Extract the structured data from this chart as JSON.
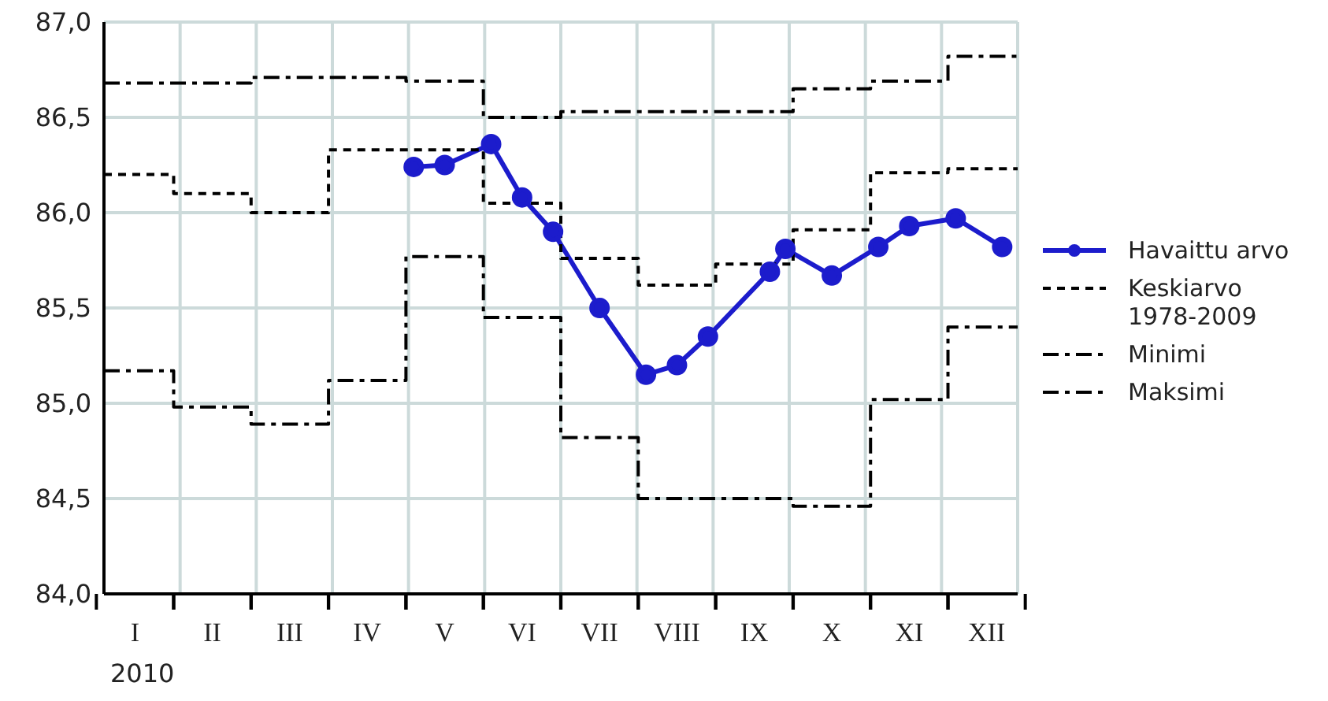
{
  "chart_data": {
    "type": "line",
    "xlabel": "2010",
    "categories": [
      null,
      null,
      "I",
      null,
      null,
      null,
      null,
      "II",
      null,
      null,
      null,
      null,
      "III",
      null,
      null,
      null,
      null,
      "IV",
      null,
      null,
      null,
      null,
      "V",
      null,
      null,
      null,
      null,
      "VI",
      null,
      null,
      null,
      null,
      "VII",
      null,
      null,
      null,
      null,
      "VIII",
      null,
      null,
      null,
      null,
      "IX",
      null,
      null,
      null,
      null,
      "X",
      null,
      null,
      null,
      null,
      "XI",
      null,
      null,
      null,
      null,
      "XII",
      null,
      null
    ],
    "ylim": [
      84,
      87
    ],
    "yticks": [
      {
        "value": 84,
        "label": "84,0"
      },
      {
        "value": 84.5,
        "label": "84,5"
      },
      {
        "value": 85,
        "label": "85,0"
      },
      {
        "value": 85.5,
        "label": "85,5"
      },
      {
        "value": 86,
        "label": "86,0"
      },
      {
        "value": 86.5,
        "label": "86,5"
      },
      {
        "value": 87,
        "label": "87,0"
      }
    ],
    "grid": true,
    "legend": "right",
    "series": [
      {
        "name": "Havaittu arvo",
        "color": "#1c1ccc",
        "marker": "circle",
        "line_style": "solid",
        "values": [
          null,
          null,
          null,
          null,
          null,
          null,
          null,
          null,
          null,
          null,
          null,
          null,
          null,
          null,
          null,
          null,
          null,
          null,
          null,
          null,
          86.24,
          null,
          86.25,
          null,
          null,
          86.36,
          null,
          86.08,
          null,
          85.9,
          null,
          null,
          85.5,
          null,
          null,
          85.15,
          null,
          85.2,
          null,
          85.35,
          null,
          null,
          null,
          85.69,
          85.81,
          null,
          null,
          85.67,
          null,
          null,
          85.82,
          null,
          85.93,
          null,
          null,
          85.97,
          null,
          null,
          85.82,
          null
        ]
      },
      {
        "name": "Keskiarvo 1978-2009",
        "type": "step",
        "color": "#000000",
        "marker": "none",
        "line_style": "dotted",
        "values": [
          86.2,
          86.2,
          86.2,
          86.2,
          86.2,
          86.1,
          86.1,
          86.1,
          86.1,
          86.1,
          86.0,
          86.0,
          86.0,
          86.0,
          86.0,
          86.33,
          86.33,
          86.33,
          86.33,
          86.33,
          86.33,
          86.33,
          86.33,
          86.33,
          86.33,
          86.05,
          86.05,
          86.05,
          86.05,
          86.05,
          85.76,
          85.76,
          85.76,
          85.76,
          85.76,
          85.62,
          85.62,
          85.62,
          85.62,
          85.62,
          85.73,
          85.73,
          85.73,
          85.73,
          85.73,
          85.91,
          85.91,
          85.91,
          85.91,
          85.91,
          86.21,
          86.21,
          86.21,
          86.21,
          86.21,
          86.23,
          86.23,
          86.23,
          86.23,
          86.23
        ]
      },
      {
        "name": "Minimi",
        "type": "step",
        "color": "#000000",
        "marker": "none",
        "line_style": "dashed",
        "values": [
          85.17,
          85.17,
          85.17,
          85.17,
          85.17,
          84.98,
          84.98,
          84.98,
          84.98,
          84.98,
          84.89,
          84.89,
          84.89,
          84.89,
          84.89,
          85.12,
          85.12,
          85.12,
          85.12,
          85.12,
          85.77,
          85.77,
          85.77,
          85.77,
          85.77,
          85.45,
          85.45,
          85.45,
          85.45,
          85.45,
          84.82,
          84.82,
          84.82,
          84.82,
          84.82,
          84.5,
          84.5,
          84.5,
          84.5,
          84.5,
          84.5,
          84.5,
          84.5,
          84.5,
          84.5,
          84.46,
          84.46,
          84.46,
          84.46,
          84.46,
          85.02,
          85.02,
          85.02,
          85.02,
          85.02,
          85.4,
          85.4,
          85.4,
          85.4,
          85.4
        ]
      },
      {
        "name": "Maksimi",
        "type": "step",
        "color": "#000000",
        "marker": "none",
        "line_style": "dashed",
        "values": [
          86.68,
          86.68,
          86.68,
          86.68,
          86.68,
          86.68,
          86.68,
          86.68,
          86.68,
          86.68,
          86.71,
          86.71,
          86.71,
          86.71,
          86.71,
          86.71,
          86.71,
          86.71,
          86.71,
          86.71,
          86.69,
          86.69,
          86.69,
          86.69,
          86.69,
          86.5,
          86.5,
          86.5,
          86.5,
          86.5,
          86.53,
          86.53,
          86.53,
          86.53,
          86.53,
          86.53,
          86.53,
          86.53,
          86.53,
          86.53,
          86.53,
          86.53,
          86.53,
          86.53,
          86.53,
          86.65,
          86.65,
          86.65,
          86.65,
          86.65,
          86.69,
          86.69,
          86.69,
          86.69,
          86.69,
          86.82,
          86.82,
          86.82,
          86.82,
          86.82
        ]
      }
    ]
  }
}
